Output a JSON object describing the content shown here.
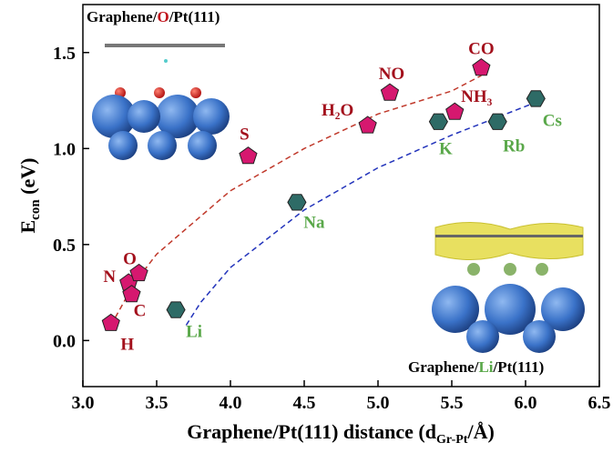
{
  "chart_data": {
    "type": "scatter",
    "x_label": [
      "Graphene/Pt(111) distance (d",
      "Gr-Pt",
      "/Å)"
    ],
    "y_label": [
      "E",
      "con",
      " (eV)"
    ],
    "xlim": [
      3.0,
      6.5
    ],
    "ylim": [
      -0.24,
      1.75
    ],
    "xticks": [
      {
        "value": 3.0,
        "label": "3.0"
      },
      3.5,
      {
        "value": 4.0,
        "label": "4.0"
      },
      4.5,
      {
        "value": 5.0,
        "label": "5.0"
      },
      5.5,
      {
        "value": 6.0,
        "label": "6.0"
      },
      6.5
    ],
    "yticks": [
      {
        "value": 0.0,
        "label": "0.0"
      },
      0.5,
      {
        "value": 1.0,
        "label": "1.0"
      },
      1.5
    ],
    "insets": [
      {
        "title": [
          "Graphene/",
          "O",
          "/Pt(111)"
        ],
        "highlight_color": "#c0141c"
      },
      {
        "title": [
          "Graphene/",
          "Li",
          "/Pt(111)"
        ],
        "highlight_color": "#5aa84a"
      }
    ],
    "series": [
      {
        "marker": "pentagon",
        "color": "#d6186f",
        "label_color": "#a3101c",
        "labels": [
          "H",
          "N",
          "C",
          "O",
          "S",
          "H₂O",
          "NO",
          "NH₃",
          "CO"
        ],
        "x": [
          3.19,
          3.31,
          3.33,
          3.38,
          4.12,
          4.93,
          5.08,
          5.52,
          5.7
        ],
        "values": [
          0.09,
          0.3,
          0.24,
          0.35,
          0.96,
          1.12,
          1.29,
          1.19,
          1.42
        ]
      },
      {
        "marker": "hexagon",
        "color": "#2e6b66",
        "label_color": "#5aa84a",
        "labels": [
          "Li",
          "Na",
          "K",
          "Rb",
          "Cs"
        ],
        "x": [
          3.63,
          4.45,
          5.41,
          5.81,
          6.07
        ],
        "values": [
          0.16,
          0.72,
          1.14,
          1.14,
          1.26
        ]
      },
      {
        "marker": "dashed-line",
        "color": "#c0392b",
        "x": [
          3.22,
          3.35,
          3.5,
          4.0,
          4.5,
          5.0,
          5.5,
          5.7
        ],
        "values": [
          0.12,
          0.3,
          0.45,
          0.78,
          1.0,
          1.18,
          1.3,
          1.38
        ]
      },
      {
        "marker": "dashed-line",
        "color": "#2233bb",
        "x": [
          3.7,
          3.8,
          4.0,
          4.5,
          5.0,
          5.5,
          6.0,
          6.1
        ],
        "values": [
          0.08,
          0.2,
          0.38,
          0.68,
          0.9,
          1.07,
          1.22,
          1.25
        ]
      }
    ]
  }
}
